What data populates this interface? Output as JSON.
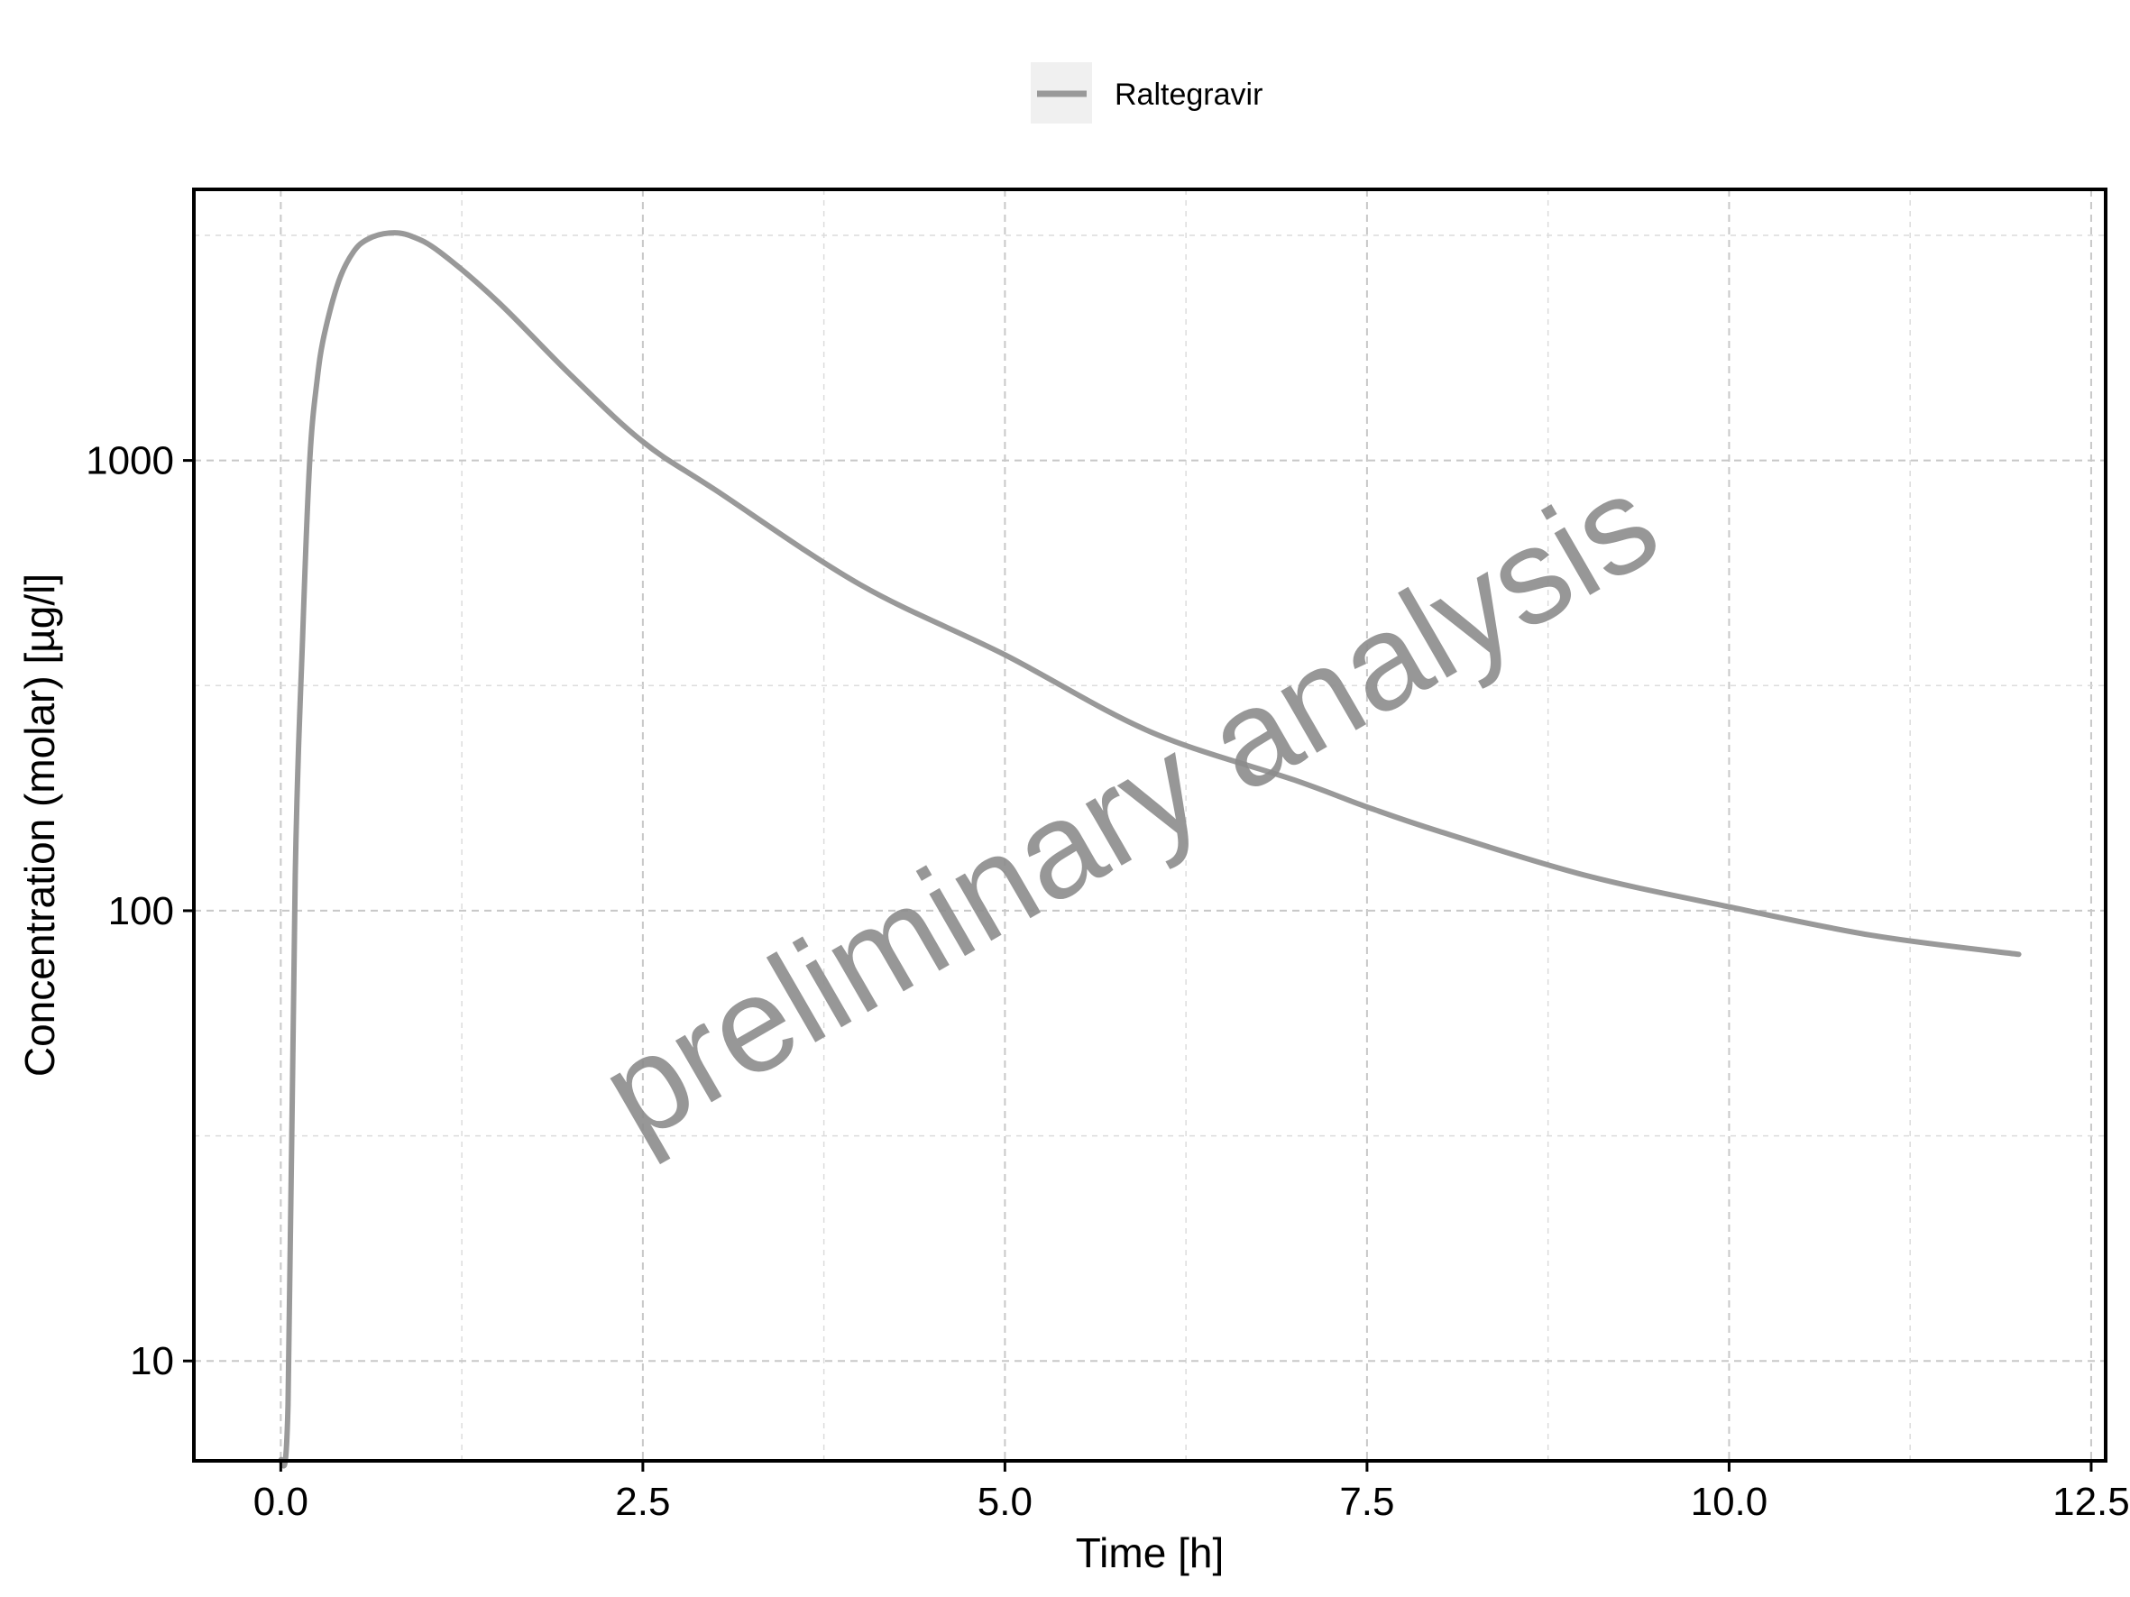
{
  "chart_data": {
    "type": "line",
    "xlabel": "Time [h]",
    "ylabel": "Concentration (molar) [µg/l]",
    "yscale": "log",
    "xlim": [
      -0.6,
      12.6
    ],
    "ylim": [
      6,
      4000
    ],
    "xticks": [
      0.0,
      2.5,
      5.0,
      7.5,
      10.0,
      12.5
    ],
    "xtick_labels": [
      "0.0",
      "2.5",
      "5.0",
      "7.5",
      "10.0",
      "12.5"
    ],
    "yticks": [
      10,
      100,
      1000
    ],
    "ytick_labels": [
      "10",
      "100",
      "1000"
    ],
    "grid": true,
    "legend_position": "top",
    "watermark": "preliminary analysis",
    "series": [
      {
        "name": "Raltegravir",
        "color": "#999999",
        "x": [
          0,
          0.05,
          0.1,
          0.15,
          0.2,
          0.25,
          0.3,
          0.4,
          0.5,
          0.6,
          0.75,
          0.9,
          1.1,
          1.5,
          2.0,
          2.5,
          3.0,
          4.0,
          5.0,
          6.0,
          7.0,
          7.5,
          8.0,
          9.0,
          10.0,
          11.0,
          12.0
        ],
        "y": [
          6,
          8,
          120,
          400,
          1000,
          1500,
          1900,
          2500,
          2900,
          3100,
          3200,
          3150,
          2900,
          2250,
          1550,
          1100,
          860,
          530,
          370,
          250,
          195,
          170,
          150,
          120,
          102,
          88,
          80
        ]
      }
    ]
  }
}
